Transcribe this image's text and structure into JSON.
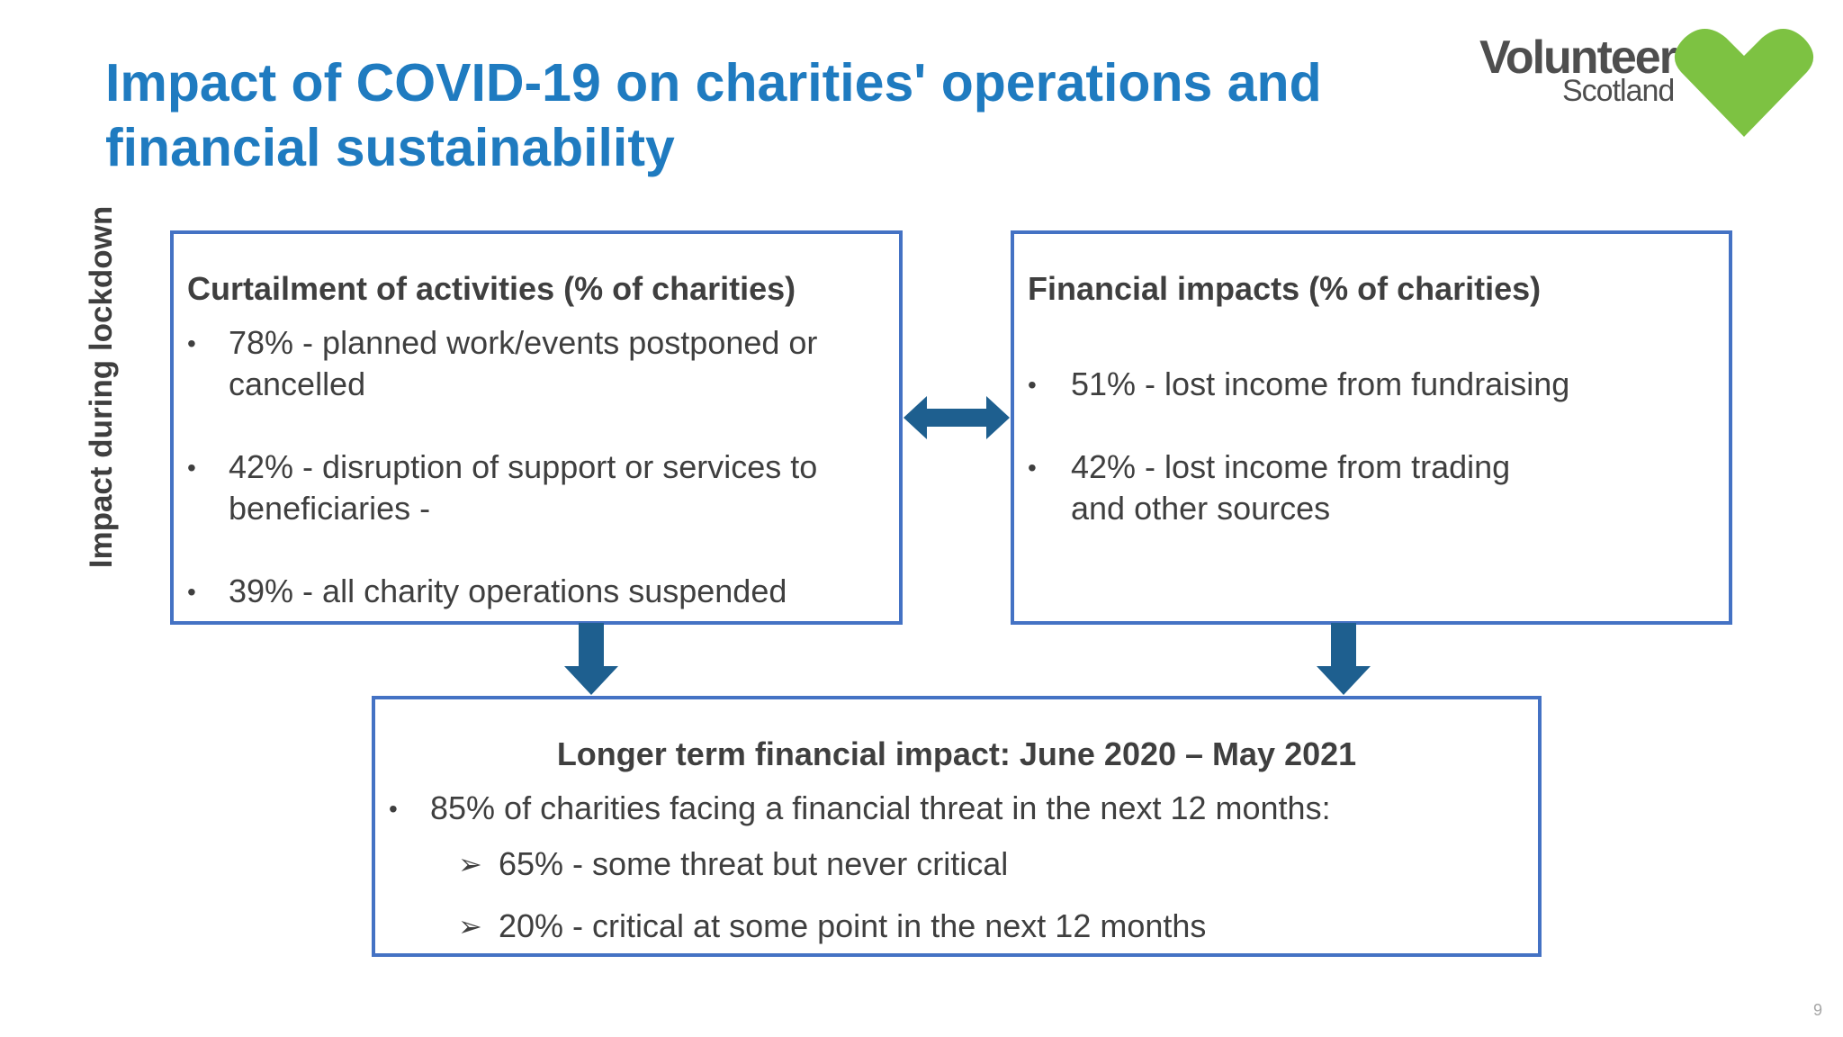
{
  "slide": {
    "title": "Impact of COVID-19 on charities' operations and financial sustainability",
    "side_label": "Impact during lockdown",
    "page_number": "9"
  },
  "logo": {
    "word": "Volunteer",
    "sub": "Scotland",
    "heart_color": "#7dc242",
    "text_color": "#4e4e4e"
  },
  "left_box": {
    "heading": "Curtailment of activities (% of charities)",
    "bullets": [
      "78% - planned work/events postponed or cancelled",
      "42% - disruption of support or services to beneficiaries -",
      "39% - all charity operations suspended"
    ]
  },
  "right_box": {
    "heading": "Financial impacts (% of charities)",
    "bullets": [
      "51% - lost income from fundraising",
      "42% - lost income from trading and other sources"
    ]
  },
  "bottom_box": {
    "heading": "Longer term financial impact: June 2020 – May 2021",
    "bullet": "85% of charities facing a financial threat in the next 12 months:",
    "sub_items": [
      "65% - some threat but never critical",
      "20% - critical at some point in the next 12 months"
    ]
  },
  "colors": {
    "title": "#1f7bc0",
    "box_border": "#4472c4",
    "arrow": "#1e5f8f",
    "text": "#3f3f3f"
  },
  "icons": {
    "bullet": "bullet-dot",
    "sub_bullet": "arrow-bullet-icon",
    "connector_h": "double-headed-arrow-icon",
    "connector_down": "down-arrow-icon"
  }
}
